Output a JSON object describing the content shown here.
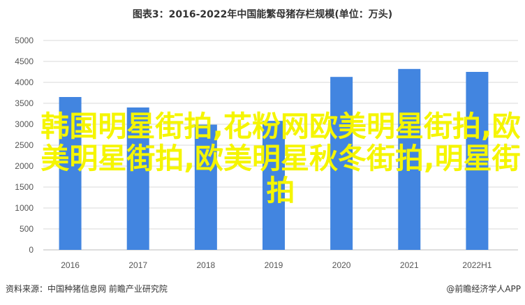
{
  "chart_data": {
    "type": "bar",
    "title": "图表3：2016-2022年中国能繁母猪存栏规模(单位：万头)",
    "categories": [
      "2016",
      "2017",
      "2018",
      "2019",
      "2020",
      "2021",
      "2022H1"
    ],
    "values": [
      3650,
      3400,
      2990,
      3080,
      4130,
      4320,
      4250
    ],
    "ylim": [
      0,
      5000
    ],
    "yticks": [
      "0",
      "500",
      "1000",
      "1500",
      "2000",
      "2500",
      "3000",
      "3500",
      "4000",
      "4500",
      "5000"
    ],
    "grid": true,
    "xlabel": "",
    "ylabel": "",
    "bar_color": "#4285e0"
  },
  "source": "资料来源：中国种猪信息网 前瞻产业研究院",
  "credit": "@前瞻经济学人APP",
  "overlay_text": "韩国明星街拍,花粉网欧美明星街拍,欧美明星街拍,欧美明星秋冬街拍,明星街拍"
}
